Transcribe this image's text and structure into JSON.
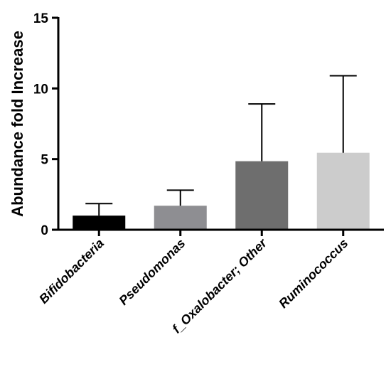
{
  "chart_data": {
    "type": "bar",
    "title": "",
    "xlabel": "",
    "ylabel": "Abundance fold Increase",
    "categories": [
      "Bifidobacteria",
      "Pseudomonas",
      "f_Oxalobacter; Other",
      "Ruminococcus"
    ],
    "values": [
      1.0,
      1.7,
      4.85,
      5.45
    ],
    "error_upper": [
      1.85,
      2.8,
      8.9,
      10.9
    ],
    "colors": [
      "#000000",
      "#8e8e92",
      "#6e6e6e",
      "#cccccc"
    ],
    "ylim": [
      0,
      15
    ],
    "yticks": [
      "0",
      "5",
      "10",
      "15"
    ],
    "grid": false,
    "legend": "none"
  }
}
